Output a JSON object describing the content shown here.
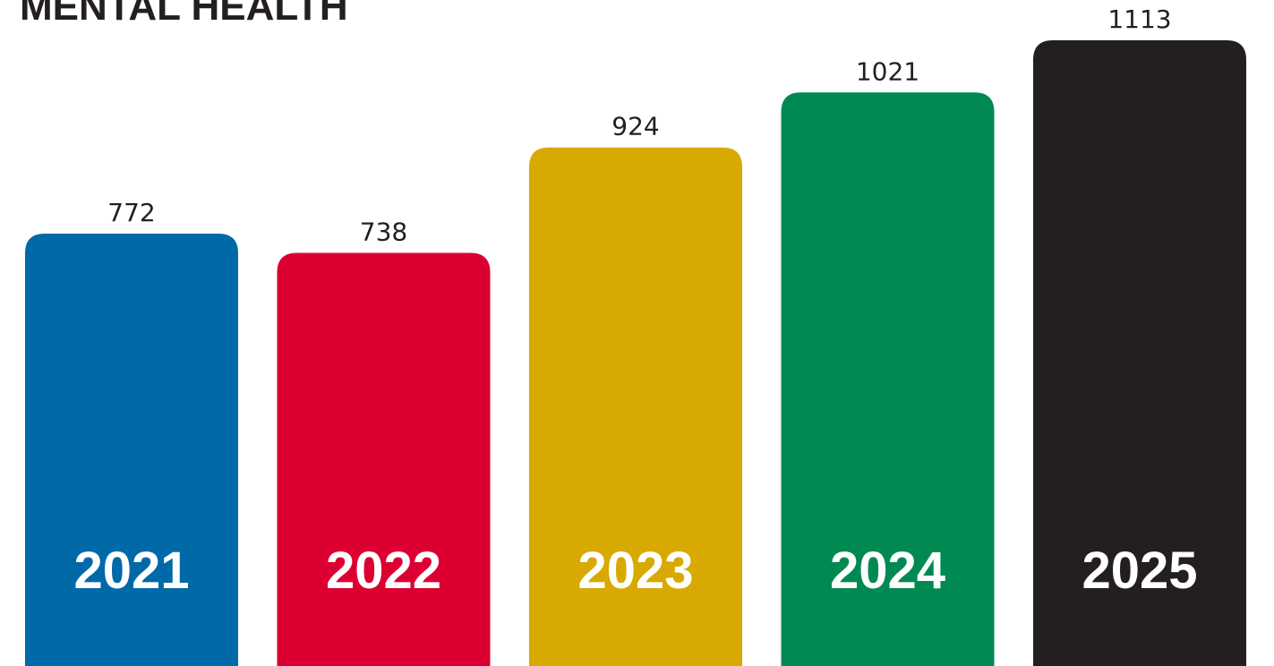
{
  "chart_data": {
    "type": "bar",
    "title": "MENTAL HEALTH",
    "categories": [
      "2021",
      "2022",
      "2023",
      "2024",
      "2025"
    ],
    "values": [
      772,
      738,
      924,
      1021,
      1113
    ],
    "colors": [
      "#0069a8",
      "#dc0032",
      "#d8a900",
      "#008a52",
      "#231f20"
    ]
  }
}
